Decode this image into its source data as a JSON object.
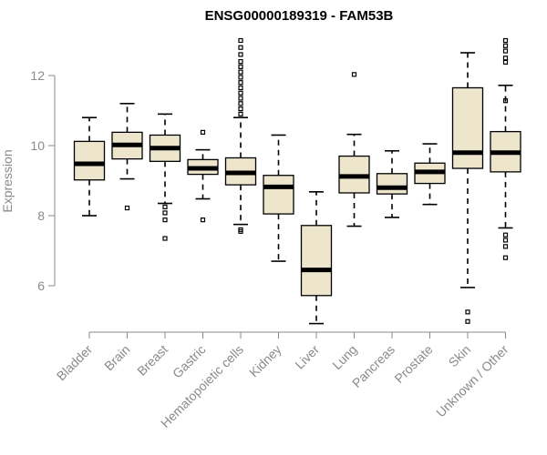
{
  "chart_data": {
    "type": "boxplot",
    "title": "ENSG00000189319 - FAM53B",
    "xlabel": "",
    "ylabel": "Expression",
    "ylim": [
      4.6,
      13.2
    ],
    "yticks": [
      6,
      8,
      10,
      12
    ],
    "colors": {
      "box_fill": "#ede6cd",
      "stroke": "#000000",
      "axis": "#8a8a8a"
    },
    "categories": [
      "Bladder",
      "Brain",
      "Breast",
      "Gastric",
      "Hematopoietic cells",
      "Kidney",
      "Liver",
      "Lung",
      "Pancreas",
      "Prostate",
      "Skin",
      "Unknown / Other"
    ],
    "boxes": [
      {
        "name": "Bladder",
        "min": 8.0,
        "q1": 9.02,
        "median": 9.48,
        "q3": 10.12,
        "max": 10.8,
        "outliers": []
      },
      {
        "name": "Brain",
        "min": 9.05,
        "q1": 9.62,
        "median": 10.02,
        "q3": 10.38,
        "max": 11.2,
        "outliers": [
          8.22
        ]
      },
      {
        "name": "Breast",
        "min": 8.35,
        "q1": 9.55,
        "median": 9.93,
        "q3": 10.3,
        "max": 10.9,
        "outliers": [
          8.25,
          8.08,
          7.88,
          7.35
        ]
      },
      {
        "name": "Gastric",
        "min": 8.48,
        "q1": 9.18,
        "median": 9.35,
        "q3": 9.6,
        "max": 9.88,
        "outliers": [
          10.38,
          7.88
        ]
      },
      {
        "name": "Hematopoietic cells",
        "min": 7.75,
        "q1": 8.88,
        "median": 9.22,
        "q3": 9.65,
        "max": 10.8,
        "outliers": [
          10.9,
          11.05,
          11.2,
          11.35,
          11.5,
          11.65,
          11.8,
          11.95,
          12.1,
          12.25,
          12.4,
          12.6,
          12.8,
          13.0,
          7.6,
          7.55
        ]
      },
      {
        "name": "Kidney",
        "min": 6.7,
        "q1": 8.05,
        "median": 8.82,
        "q3": 9.15,
        "max": 10.3,
        "outliers": []
      },
      {
        "name": "Liver",
        "min": 4.92,
        "q1": 5.72,
        "median": 6.45,
        "q3": 7.72,
        "max": 8.68,
        "outliers": []
      },
      {
        "name": "Lung",
        "min": 7.7,
        "q1": 8.65,
        "median": 9.12,
        "q3": 9.7,
        "max": 10.32,
        "outliers": [
          12.03
        ]
      },
      {
        "name": "Pancreas",
        "min": 7.95,
        "q1": 8.62,
        "median": 8.8,
        "q3": 9.2,
        "max": 9.85,
        "outliers": []
      },
      {
        "name": "Prostate",
        "min": 8.32,
        "q1": 8.92,
        "median": 9.25,
        "q3": 9.5,
        "max": 10.05,
        "outliers": []
      },
      {
        "name": "Skin",
        "min": 5.95,
        "q1": 9.35,
        "median": 9.8,
        "q3": 11.65,
        "max": 12.65,
        "outliers": [
          5.25,
          4.98
        ]
      },
      {
        "name": "Unknown / Other",
        "min": 7.65,
        "q1": 9.25,
        "median": 9.8,
        "q3": 10.4,
        "max": 11.72,
        "outliers": [
          13.0,
          12.85,
          12.7,
          12.5,
          12.38,
          11.28,
          7.45,
          7.3,
          7.12,
          6.8
        ]
      }
    ]
  }
}
